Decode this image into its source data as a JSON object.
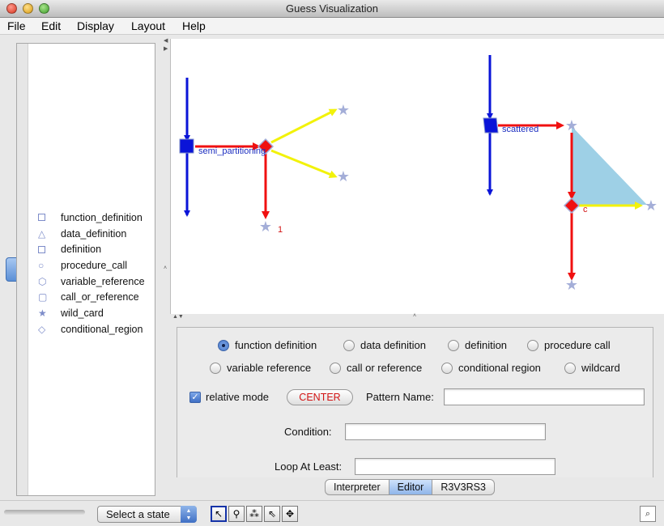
{
  "window": {
    "title": "Guess Visualization"
  },
  "menu": {
    "items": [
      "File",
      "Edit",
      "Display",
      "Layout",
      "Help"
    ]
  },
  "legend": {
    "items": [
      {
        "label": "function_definition",
        "icon": "square-icon"
      },
      {
        "label": "data_definition",
        "icon": "triangle-icon"
      },
      {
        "label": "definition",
        "icon": "square-icon"
      },
      {
        "label": "procedure_call",
        "icon": "circle-icon"
      },
      {
        "label": "variable_reference",
        "icon": "hexagon-icon"
      },
      {
        "label": "call_or_reference",
        "icon": "rounded-rect-icon"
      },
      {
        "label": "wild_card",
        "icon": "star-icon"
      },
      {
        "label": "conditional_region",
        "icon": "diamond-icon"
      }
    ]
  },
  "graph": {
    "labels": {
      "semi": "semi_partitioning",
      "one": "1",
      "scattered": "scattered",
      "c": "c"
    },
    "colors": {
      "blue": "#0a14d8",
      "red": "#f01010",
      "yellow": "#f2f20a",
      "triangle": "#9ed0e6",
      "star": "#a4aed8"
    }
  },
  "editor": {
    "radios_row1": [
      {
        "label": "function definition",
        "selected": true
      },
      {
        "label": "data definition",
        "selected": false
      },
      {
        "label": "definition",
        "selected": false
      },
      {
        "label": "procedure call",
        "selected": false
      }
    ],
    "radios_row2": [
      {
        "label": "variable reference",
        "selected": false
      },
      {
        "label": "call or reference",
        "selected": false
      },
      {
        "label": "conditional region",
        "selected": false
      },
      {
        "label": "wildcard",
        "selected": false
      }
    ],
    "relative_mode": {
      "label": "relative mode",
      "checked": true
    },
    "center_label": "CENTER",
    "pattern_name_label": "Pattern Name:",
    "pattern_name_value": "",
    "condition_label": "Condition:",
    "condition_value": "",
    "loop_label": "Loop At Least:",
    "loop_value": ""
  },
  "tabs": {
    "items": [
      "Interpreter",
      "Editor",
      "R3V3RS3"
    ],
    "active": "Editor"
  },
  "bottombar": {
    "select_state": "Select a state"
  }
}
